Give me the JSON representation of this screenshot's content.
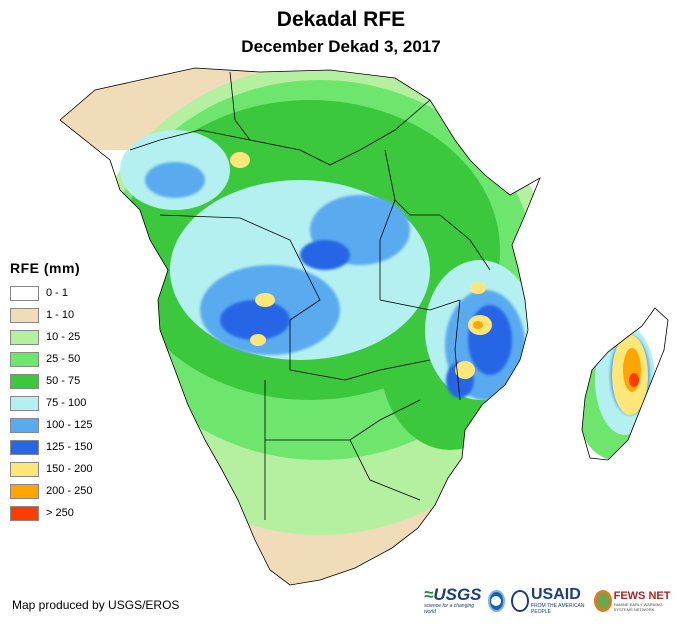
{
  "title": "Dekadal RFE",
  "subtitle": "December Dekad 3, 2017",
  "legend": {
    "title": "RFE (mm)",
    "items": [
      {
        "label": "0 - 1",
        "color": "#ffffff"
      },
      {
        "label": "1 - 10",
        "color": "#f0dcb8"
      },
      {
        "label": "10 - 25",
        "color": "#b4f0a0"
      },
      {
        "label": "25 - 50",
        "color": "#6ee66e"
      },
      {
        "label": "50 - 75",
        "color": "#3cc83c"
      },
      {
        "label": "75 - 100",
        "color": "#b4f0f0"
      },
      {
        "label": "100 - 125",
        "color": "#5aaaf0"
      },
      {
        "label": "125 - 150",
        "color": "#2866e6"
      },
      {
        "label": "150 - 200",
        "color": "#ffe678"
      },
      {
        "label": "200 - 250",
        "color": "#ffa500"
      },
      {
        "label": "> 250",
        "color": "#ff3c00"
      }
    ]
  },
  "credit": "Map produced by USGS/EROS",
  "logos": {
    "usgs": "USGS",
    "usgs_tagline": "science for a changing world",
    "usaid": "USAID",
    "usaid_tagline": "FROM THE AMERICAN PEOPLE",
    "fewsnet": "FEWS NET",
    "fewsnet_tagline": "FAMINE EARLY WARNING SYSTEMS NETWORK"
  },
  "colors": {
    "border": "#000000",
    "ocean": "#ffffff"
  }
}
